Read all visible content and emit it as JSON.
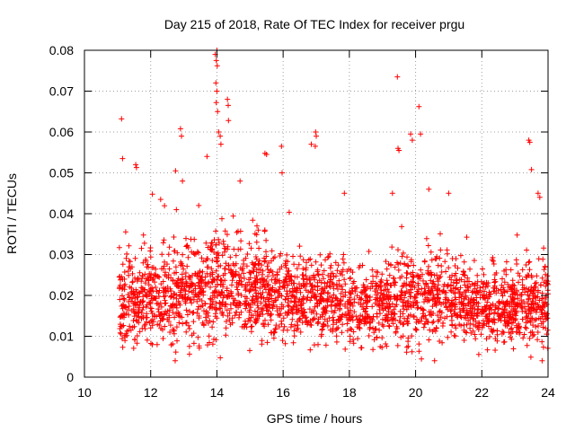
{
  "chart_data": {
    "type": "scatter",
    "title": "Day 215 of 2018, Rate Of TEC Index for receiver prgu",
    "xlabel": "GPS time / hours",
    "ylabel": "ROTI / TECUs",
    "xlim": [
      10,
      24
    ],
    "ylim": [
      0,
      0.08
    ],
    "grid": true,
    "marker": "+",
    "color": "#ff0000",
    "x_ticks": [
      "10",
      "12",
      "14",
      "16",
      "18",
      "20",
      "22",
      "24"
    ],
    "y_ticks": [
      "0",
      "0.01",
      "0.02",
      "0.03",
      "0.04",
      "0.05",
      "0.06",
      "0.07",
      "0.08"
    ],
    "series": [
      {
        "name": "ROTI",
        "points": [
          [
            11.12,
            0.0632
          ],
          [
            11.15,
            0.0535
          ],
          [
            11.55,
            0.052
          ],
          [
            11.57,
            0.0513
          ],
          [
            12.05,
            0.0448
          ],
          [
            12.3,
            0.0435
          ],
          [
            12.75,
            0.0505
          ],
          [
            12.9,
            0.0608
          ],
          [
            12.93,
            0.059
          ],
          [
            12.96,
            0.048
          ],
          [
            13.45,
            0.042
          ],
          [
            13.7,
            0.054
          ],
          [
            13.95,
            0.079
          ],
          [
            14.0,
            0.08
          ],
          [
            13.98,
            0.0775
          ],
          [
            14.01,
            0.0762
          ],
          [
            13.97,
            0.072
          ],
          [
            14.0,
            0.07
          ],
          [
            13.98,
            0.0672
          ],
          [
            14.02,
            0.065
          ],
          [
            14.05,
            0.06
          ],
          [
            14.1,
            0.059
          ],
          [
            14.12,
            0.057
          ],
          [
            14.32,
            0.068
          ],
          [
            14.34,
            0.0665
          ],
          [
            14.35,
            0.0628
          ],
          [
            14.7,
            0.048
          ],
          [
            15.45,
            0.0548
          ],
          [
            15.5,
            0.0545
          ],
          [
            15.95,
            0.0565
          ],
          [
            15.97,
            0.05
          ],
          [
            16.85,
            0.057
          ],
          [
            16.98,
            0.06
          ],
          [
            17.0,
            0.059
          ],
          [
            16.97,
            0.0565
          ],
          [
            17.85,
            0.045
          ],
          [
            19.3,
            0.045
          ],
          [
            19.45,
            0.0735
          ],
          [
            19.47,
            0.056
          ],
          [
            19.5,
            0.0555
          ],
          [
            19.85,
            0.0595
          ],
          [
            19.9,
            0.058
          ],
          [
            20.1,
            0.0662
          ],
          [
            20.15,
            0.0595
          ],
          [
            20.4,
            0.046
          ],
          [
            21.0,
            0.045
          ],
          [
            23.42,
            0.058
          ],
          [
            23.45,
            0.0575
          ],
          [
            23.5,
            0.0508
          ],
          [
            23.7,
            0.045
          ],
          [
            23.75,
            0.044
          ]
        ]
      }
    ],
    "density_profile": {
      "description": "bulk ROTI scatter, per-time-window median and spread (data units)",
      "hours": [
        11.05,
        11.5,
        12.0,
        12.5,
        13.0,
        13.5,
        14.0,
        14.5,
        15.0,
        15.5,
        16.0,
        16.5,
        17.0,
        17.5,
        17.9,
        18.0,
        18.5,
        19.0,
        19.5,
        20.0,
        20.5,
        21.0,
        21.5,
        22.0,
        22.5,
        23.0,
        23.5,
        24.0
      ],
      "median": [
        0.018,
        0.019,
        0.019,
        0.02,
        0.021,
        0.02,
        0.022,
        0.021,
        0.02,
        0.021,
        0.019,
        0.019,
        0.019,
        0.019,
        0.018,
        0.017,
        0.017,
        0.018,
        0.019,
        0.02,
        0.02,
        0.019,
        0.018,
        0.017,
        0.017,
        0.017,
        0.018,
        0.018
      ],
      "spread": [
        0.009,
        0.008,
        0.008,
        0.009,
        0.01,
        0.009,
        0.01,
        0.009,
        0.009,
        0.009,
        0.008,
        0.008,
        0.008,
        0.008,
        0.007,
        0.008,
        0.007,
        0.008,
        0.009,
        0.009,
        0.009,
        0.008,
        0.007,
        0.006,
        0.007,
        0.007,
        0.008,
        0.008
      ]
    }
  }
}
